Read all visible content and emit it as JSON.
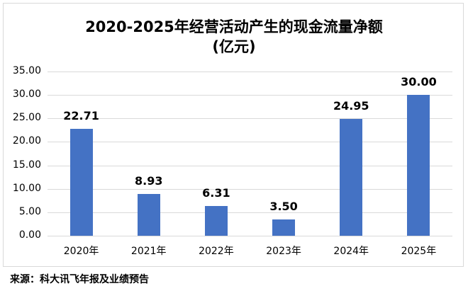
{
  "chart_data": {
    "type": "bar",
    "title": "2020-2025年经营活动产生的现金流量净额",
    "subtitle": "(亿元)",
    "categories": [
      "2020年",
      "2021年",
      "2022年",
      "2023年",
      "2024年",
      "2025年"
    ],
    "values": [
      22.71,
      8.93,
      6.31,
      3.5,
      24.95,
      30.0
    ],
    "value_labels": [
      "22.71",
      "8.93",
      "6.31",
      "3.50",
      "24.95",
      "30.00"
    ],
    "xlabel": "",
    "ylabel": "",
    "ylim": [
      0,
      35
    ],
    "yticks": [
      "0.00",
      "5.00",
      "10.00",
      "15.00",
      "20.00",
      "25.00",
      "30.00",
      "35.00"
    ],
    "grid": true,
    "bar_color": "#4472c4",
    "legend": null
  },
  "source": "来源：科大讯飞年报及业绩预告"
}
